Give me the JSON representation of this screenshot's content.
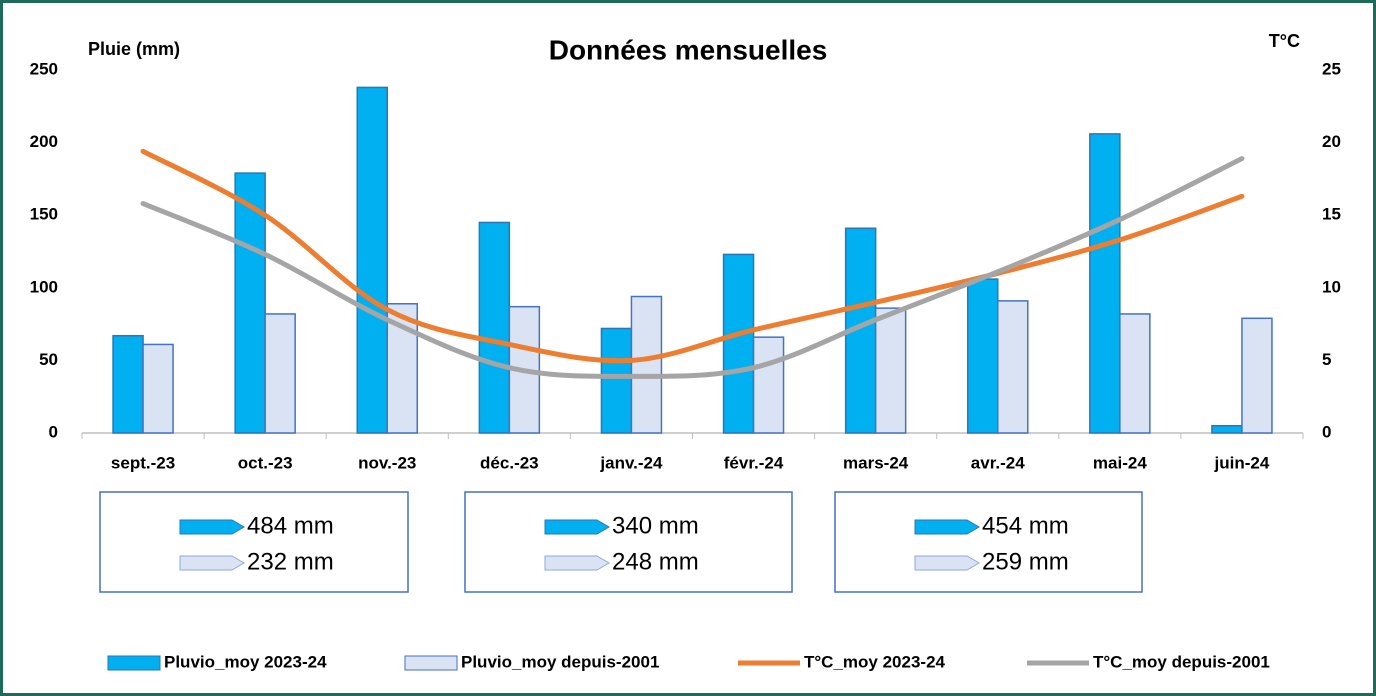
{
  "chart_data": {
    "type": "bar",
    "title": "Données mensuelles",
    "y_label": "Pluie (mm)",
    "y2_label": "T°C",
    "categories": [
      "sept.-23",
      "oct.-23",
      "nov.-23",
      "déc.-23",
      "janv.-24",
      "févr.-24",
      "mars-24",
      "avr.-24",
      "mai-24",
      "juin-24"
    ],
    "ylim": [
      0,
      250
    ],
    "yticks": [
      0,
      50,
      100,
      150,
      200,
      250
    ],
    "y2lim": [
      0,
      25
    ],
    "y2ticks": [
      0,
      5,
      10,
      15,
      20,
      25
    ],
    "legend": "bottom",
    "series": [
      {
        "name": "Pluvio_moy 2023-24",
        "type": "bar",
        "color": "#00b0f0",
        "values": [
          67,
          179,
          238,
          145,
          72,
          123,
          141,
          106,
          206,
          5
        ]
      },
      {
        "name": "Pluvio_moy depuis-2001",
        "type": "bar",
        "color": "#dae3f3",
        "values": [
          61,
          82,
          89,
          87,
          94,
          66,
          86,
          91,
          82,
          79
        ]
      },
      {
        "name": "T°C_moy 2023-24",
        "type": "line",
        "axis": "y2",
        "color": "#ed7d31",
        "values": [
          19.4,
          15.0,
          8.5,
          6.1,
          5.0,
          7.1,
          9.0,
          11.0,
          13.3,
          16.3
        ]
      },
      {
        "name": "T°C_moy depuis-2001",
        "type": "line",
        "axis": "y2",
        "color": "#a5a5a5",
        "values": [
          15.8,
          12.3,
          7.8,
          4.5,
          3.9,
          4.5,
          7.8,
          11.1,
          14.7,
          18.9
        ]
      }
    ],
    "summary_boxes": [
      {
        "lines": [
          "484 mm",
          "232 mm"
        ]
      },
      {
        "lines": [
          "340 mm",
          "248 mm"
        ]
      },
      {
        "lines": [
          "454 mm",
          "259 mm"
        ]
      }
    ]
  }
}
